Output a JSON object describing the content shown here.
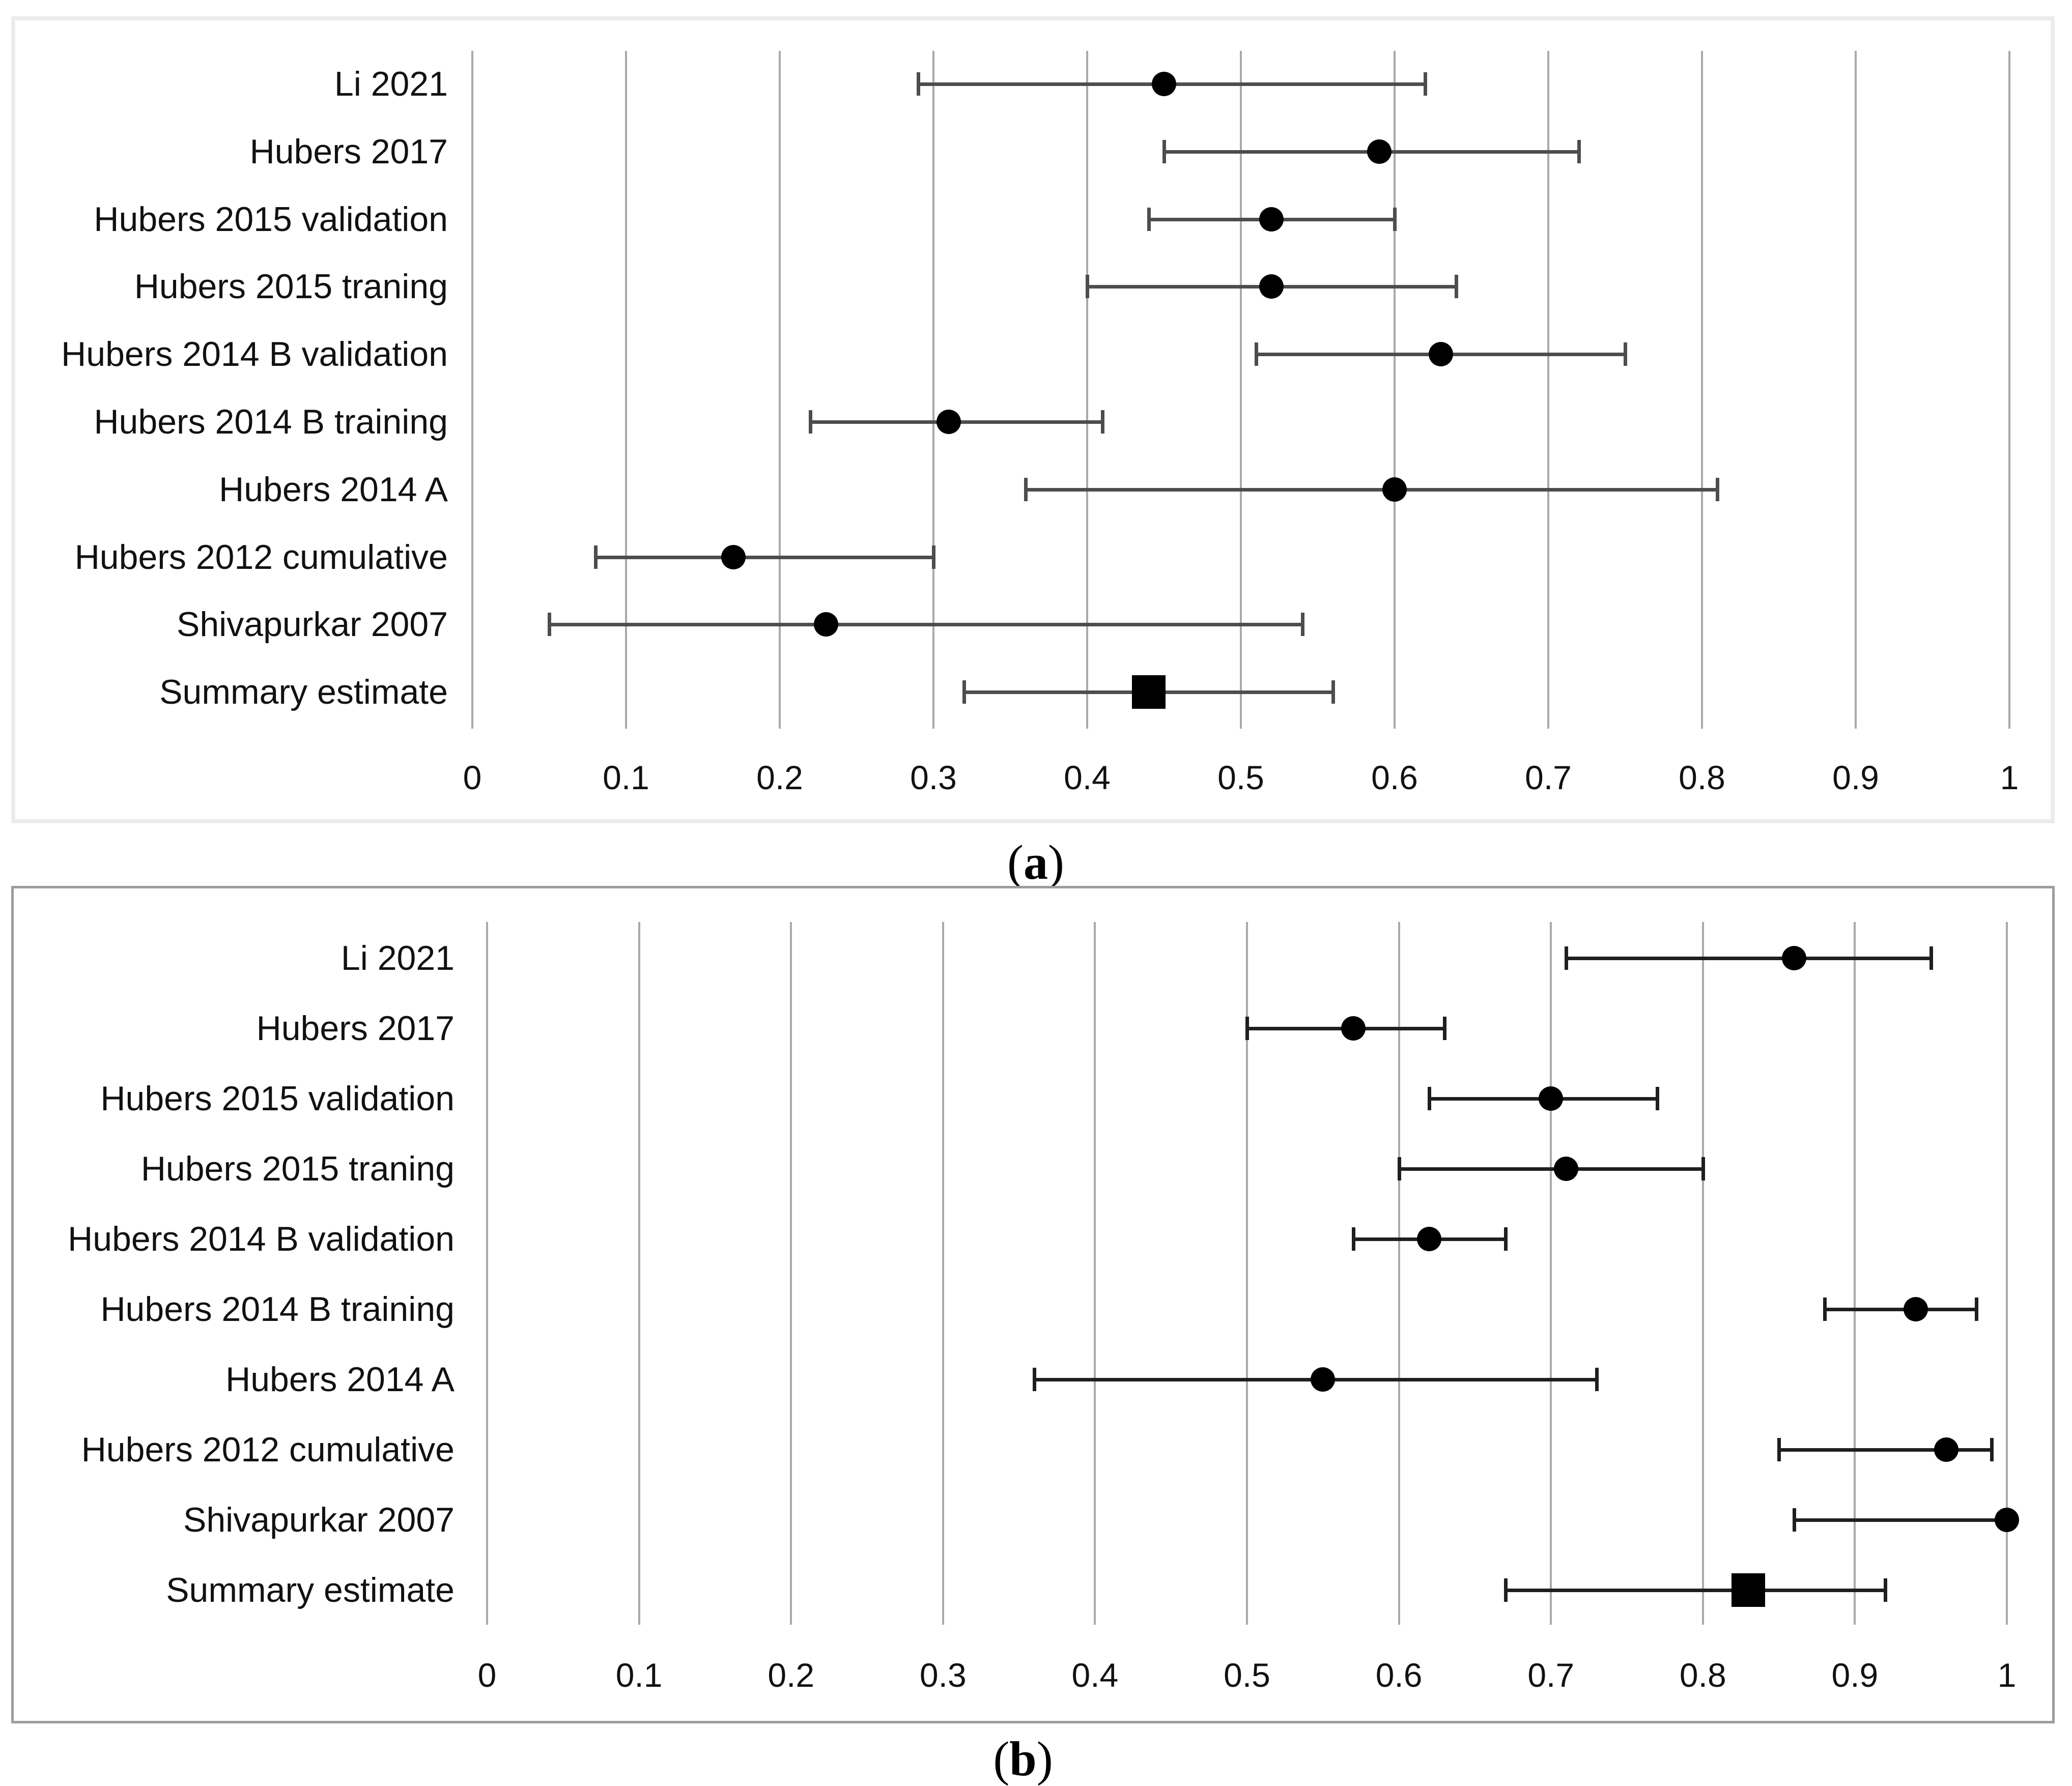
{
  "chart_data": [
    {
      "type": "forest",
      "panel_id": "a",
      "caption": {
        "open": "(",
        "letter": "a",
        "close": ")"
      },
      "xlim": [
        0,
        1
      ],
      "xticks": [
        0,
        0.1,
        0.2,
        0.3,
        0.4,
        0.5,
        0.6,
        0.7,
        0.8,
        0.9,
        1
      ],
      "xtick_labels": [
        "0",
        "0.1",
        "0.2",
        "0.3",
        "0.4",
        "0.5",
        "0.6",
        "0.7",
        "0.8",
        "0.9",
        "1"
      ],
      "grid": true,
      "legend_position": "none",
      "studies": [
        {
          "label": "Li 2021",
          "estimate": 0.45,
          "ci_low": 0.29,
          "ci_high": 0.62,
          "marker": "circle"
        },
        {
          "label": "Hubers 2017",
          "estimate": 0.59,
          "ci_low": 0.45,
          "ci_high": 0.72,
          "marker": "circle"
        },
        {
          "label": "Hubers 2015 validation",
          "estimate": 0.52,
          "ci_low": 0.44,
          "ci_high": 0.6,
          "marker": "circle"
        },
        {
          "label": "Hubers 2015 traning",
          "estimate": 0.52,
          "ci_low": 0.4,
          "ci_high": 0.64,
          "marker": "circle"
        },
        {
          "label": "Hubers 2014 B validation",
          "estimate": 0.63,
          "ci_low": 0.51,
          "ci_high": 0.75,
          "marker": "circle"
        },
        {
          "label": "Hubers 2014 B training",
          "estimate": 0.31,
          "ci_low": 0.22,
          "ci_high": 0.41,
          "marker": "circle"
        },
        {
          "label": "Hubers 2014 A",
          "estimate": 0.6,
          "ci_low": 0.36,
          "ci_high": 0.81,
          "marker": "circle"
        },
        {
          "label": "Hubers 2012 cumulative",
          "estimate": 0.17,
          "ci_low": 0.08,
          "ci_high": 0.3,
          "marker": "circle"
        },
        {
          "label": "Shivapurkar 2007",
          "estimate": 0.23,
          "ci_low": 0.05,
          "ci_high": 0.54,
          "marker": "circle"
        },
        {
          "label": "Summary estimate",
          "estimate": 0.44,
          "ci_low": 0.32,
          "ci_high": 0.56,
          "marker": "square"
        }
      ],
      "style": {
        "bar_color": "#4d4d4d",
        "marker_color": "#000000",
        "grid_color": "#a9a9a9",
        "border_color": "#ececec"
      }
    },
    {
      "type": "forest",
      "panel_id": "b",
      "caption": {
        "open": "(",
        "letter": "b",
        "close": ")"
      },
      "xlim": [
        0,
        1
      ],
      "xticks": [
        0,
        0.1,
        0.2,
        0.3,
        0.4,
        0.5,
        0.6,
        0.7,
        0.8,
        0.9,
        1
      ],
      "xtick_labels": [
        "0",
        "0.1",
        "0.2",
        "0.3",
        "0.4",
        "0.5",
        "0.6",
        "0.7",
        "0.8",
        "0.9",
        "1"
      ],
      "grid": true,
      "legend_position": "none",
      "studies": [
        {
          "label": "Li 2021",
          "estimate": 0.86,
          "ci_low": 0.71,
          "ci_high": 0.95,
          "marker": "circle"
        },
        {
          "label": "Hubers 2017",
          "estimate": 0.57,
          "ci_low": 0.5,
          "ci_high": 0.63,
          "marker": "circle"
        },
        {
          "label": "Hubers 2015 validation",
          "estimate": 0.7,
          "ci_low": 0.62,
          "ci_high": 0.77,
          "marker": "circle"
        },
        {
          "label": "Hubers 2015 traning",
          "estimate": 0.71,
          "ci_low": 0.6,
          "ci_high": 0.8,
          "marker": "circle"
        },
        {
          "label": "Hubers 2014 B validation",
          "estimate": 0.62,
          "ci_low": 0.57,
          "ci_high": 0.67,
          "marker": "circle"
        },
        {
          "label": "Hubers 2014 B training",
          "estimate": 0.94,
          "ci_low": 0.88,
          "ci_high": 0.98,
          "marker": "circle"
        },
        {
          "label": "Hubers 2014 A",
          "estimate": 0.55,
          "ci_low": 0.36,
          "ci_high": 0.73,
          "marker": "circle"
        },
        {
          "label": "Hubers 2012 cumulative",
          "estimate": 0.96,
          "ci_low": 0.85,
          "ci_high": 0.99,
          "marker": "circle"
        },
        {
          "label": "Shivapurkar 2007",
          "estimate": 1.0,
          "ci_low": 0.86,
          "ci_high": 1.0,
          "marker": "circle"
        },
        {
          "label": "Summary estimate",
          "estimate": 0.83,
          "ci_low": 0.67,
          "ci_high": 0.92,
          "marker": "square"
        }
      ],
      "style": {
        "bar_color": "#1f1f1f",
        "marker_color": "#000000",
        "grid_color": "#a9a9a9",
        "border_color": "#9d9d9d"
      }
    }
  ]
}
